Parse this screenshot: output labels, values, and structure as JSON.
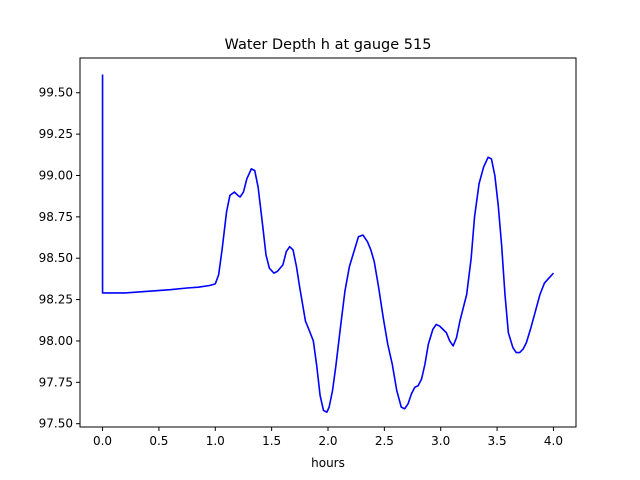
{
  "chart_data": {
    "type": "line",
    "title": "Water Depth h at gauge 515",
    "xlabel": "hours",
    "ylabel": "",
    "xlim": [
      -0.2,
      4.2
    ],
    "ylim": [
      97.48,
      99.71
    ],
    "xticks": [
      0,
      0.5,
      1,
      1.5,
      2,
      2.5,
      3,
      3.5,
      4
    ],
    "xtick_labels": [
      "0.0",
      "0.5",
      "1.0",
      "1.5",
      "2.0",
      "2.5",
      "3.0",
      "3.5",
      "4.0"
    ],
    "yticks": [
      97.5,
      97.75,
      98.0,
      98.25,
      98.5,
      98.75,
      99.0,
      99.25,
      99.5
    ],
    "ytick_labels": [
      "97.50",
      "97.75",
      "98.00",
      "98.25",
      "98.50",
      "98.75",
      "99.00",
      "99.25",
      "99.50"
    ],
    "grid": false,
    "series_color": "#0000ff",
    "series": [
      {
        "x": [
          0.0,
          0.0,
          0.0,
          0.05,
          0.2,
          0.4,
          0.6,
          0.75,
          0.85,
          0.95,
          1.0,
          1.03,
          1.06,
          1.1,
          1.13,
          1.17,
          1.2,
          1.22,
          1.25,
          1.28,
          1.32,
          1.35,
          1.38,
          1.42,
          1.45,
          1.48,
          1.52,
          1.55,
          1.6,
          1.63,
          1.66,
          1.69,
          1.72,
          1.75,
          1.78,
          1.8,
          1.83,
          1.87,
          1.9,
          1.93,
          1.96,
          1.99,
          2.01,
          2.04,
          2.07,
          2.11,
          2.15,
          2.19,
          2.23,
          2.27,
          2.31,
          2.35,
          2.38,
          2.41,
          2.45,
          2.49,
          2.53,
          2.57,
          2.61,
          2.65,
          2.68,
          2.71,
          2.74,
          2.77,
          2.8,
          2.83,
          2.86,
          2.89,
          2.93,
          2.96,
          2.99,
          3.02,
          3.05,
          3.08,
          3.11,
          3.14,
          3.17,
          3.2,
          3.23,
          3.27,
          3.3,
          3.34,
          3.38,
          3.42,
          3.45,
          3.48,
          3.51,
          3.54,
          3.57,
          3.6,
          3.64,
          3.67,
          3.7,
          3.73,
          3.76,
          3.8,
          3.84,
          3.88,
          3.92,
          3.96,
          4.0
        ],
        "y": [
          99.61,
          98.4,
          98.29,
          98.29,
          98.29,
          98.3,
          98.31,
          98.32,
          98.325,
          98.335,
          98.345,
          98.4,
          98.55,
          98.78,
          98.88,
          98.9,
          98.88,
          98.87,
          98.9,
          98.98,
          99.04,
          99.03,
          98.93,
          98.7,
          98.52,
          98.44,
          98.41,
          98.42,
          98.46,
          98.54,
          98.57,
          98.55,
          98.45,
          98.32,
          98.2,
          98.12,
          98.07,
          98.0,
          97.85,
          97.67,
          97.58,
          97.57,
          97.6,
          97.7,
          97.85,
          98.08,
          98.3,
          98.45,
          98.54,
          98.63,
          98.64,
          98.6,
          98.55,
          98.48,
          98.32,
          98.14,
          97.98,
          97.86,
          97.7,
          97.6,
          97.59,
          97.62,
          97.68,
          97.72,
          97.73,
          97.77,
          97.86,
          97.98,
          98.07,
          98.1,
          98.09,
          98.07,
          98.05,
          98.0,
          97.97,
          98.02,
          98.12,
          98.2,
          98.28,
          98.5,
          98.75,
          98.95,
          99.05,
          99.11,
          99.1,
          99.0,
          98.82,
          98.58,
          98.28,
          98.05,
          97.96,
          97.93,
          97.93,
          97.95,
          97.99,
          98.08,
          98.18,
          98.28,
          98.35,
          98.38,
          98.41
        ]
      }
    ]
  }
}
